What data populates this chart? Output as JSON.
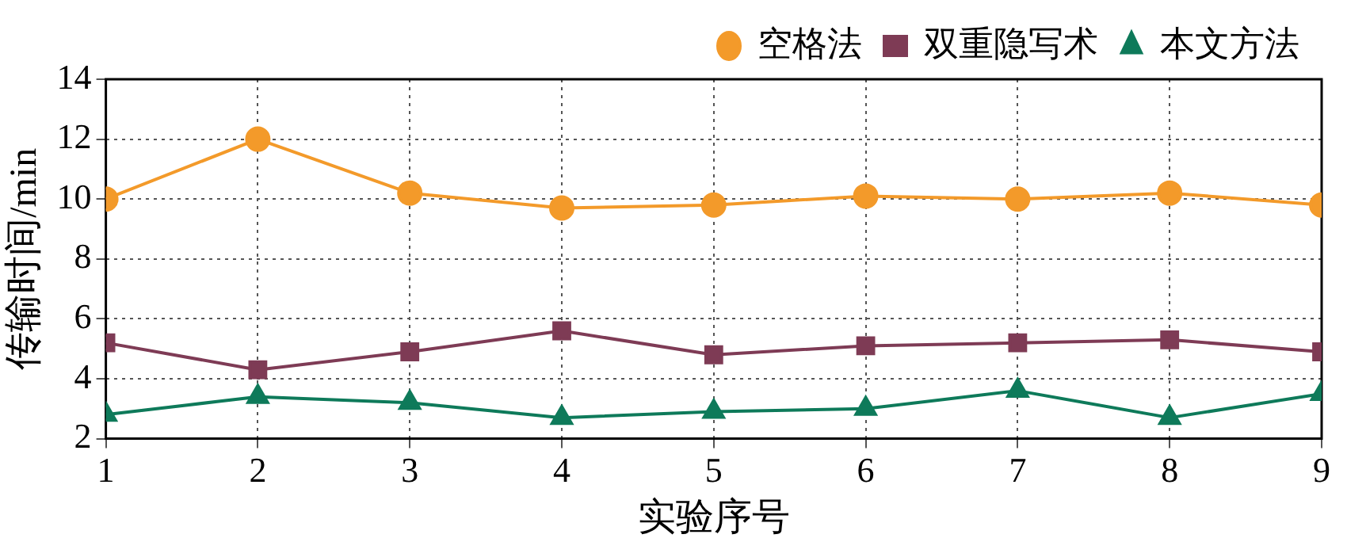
{
  "chart_data": {
    "type": "line",
    "xlabel": "实验序号",
    "ylabel": "传输时间/min",
    "x": [
      1,
      2,
      3,
      4,
      5,
      6,
      7,
      8,
      9
    ],
    "xlim": [
      1,
      9
    ],
    "xticks": [
      1,
      2,
      3,
      4,
      5,
      6,
      7,
      8,
      9
    ],
    "ylim": [
      2,
      14
    ],
    "yticks": [
      2,
      4,
      6,
      8,
      10,
      12,
      14
    ],
    "grid": true,
    "legend": "top right",
    "line_style": "solid",
    "series": [
      {
        "name": "空格法",
        "color": "#f39a2a",
        "marker": "circle",
        "values": [
          10,
          12,
          10.2,
          9.7,
          9.8,
          10.1,
          10,
          10.2,
          9.8
        ]
      },
      {
        "name": "双重隐写术",
        "color": "#7e3b55",
        "marker": "square",
        "values": [
          5.2,
          4.3,
          4.9,
          5.6,
          4.8,
          5.1,
          5.2,
          5.3,
          4.9
        ]
      },
      {
        "name": "本文方法",
        "color": "#0e7a5a",
        "marker": "triangle",
        "values": [
          2.8,
          3.4,
          3.2,
          2.7,
          2.9,
          3.0,
          3.6,
          2.7,
          3.5
        ]
      }
    ]
  }
}
